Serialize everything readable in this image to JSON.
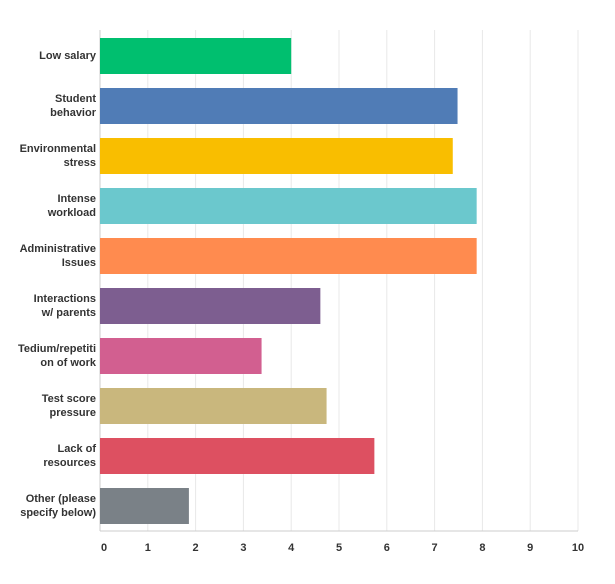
{
  "chart_data": {
    "type": "bar",
    "orientation": "horizontal",
    "categories": [
      "Low salary",
      "Student behavior",
      "Environmental stress",
      "Intense workload",
      "Administrative Issues",
      "Interactions w/ parents",
      "Tedium/repetition of work",
      "Test score pressure",
      "Lack of resources",
      "Other (please specify below)"
    ],
    "category_lines": [
      [
        "Low salary"
      ],
      [
        "Student",
        "behavior"
      ],
      [
        "Environmental",
        "stress"
      ],
      [
        "Intense",
        "workload"
      ],
      [
        "Administrative",
        "Issues"
      ],
      [
        "Interactions",
        "w/ parents"
      ],
      [
        "Tedium/repetiti",
        "on of work"
      ],
      [
        "Test score",
        "pressure"
      ],
      [
        "Lack of",
        "resources"
      ],
      [
        "Other (please",
        "specify below)"
      ]
    ],
    "values": [
      4.0,
      7.48,
      7.38,
      7.88,
      7.88,
      4.61,
      3.38,
      4.74,
      5.74,
      1.86
    ],
    "colors": [
      "#00bf6f",
      "#507cb6",
      "#f9be00",
      "#6bc8cd",
      "#ff8b4f",
      "#7d5e90",
      "#d25f90",
      "#c9b77d",
      "#dd5061",
      "#7a8187"
    ],
    "xlim": [
      0,
      10
    ],
    "xticks": [
      "0",
      "1",
      "2",
      "3",
      "4",
      "5",
      "6",
      "7",
      "8",
      "9",
      "10"
    ],
    "grid": true,
    "title": "",
    "xlabel": "",
    "ylabel": ""
  }
}
